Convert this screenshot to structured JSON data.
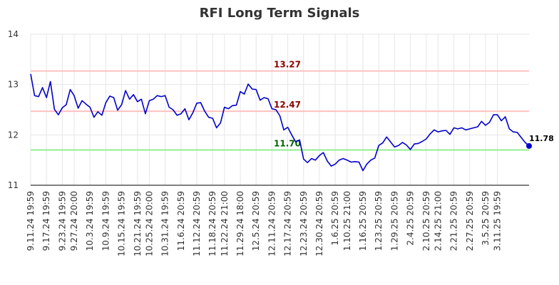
{
  "chart_data": {
    "type": "line",
    "title": "RFI Long Term Signals",
    "xlabel": "",
    "ylabel": "",
    "ylim": [
      11,
      14
    ],
    "y_ticks": [
      "11",
      "12",
      "13",
      "14"
    ],
    "x_tick_labels": [
      "9.11.24 19:59",
      "9.17.24 19:59",
      "9.23.24 19:59",
      "9.27.24 20:00",
      "10.3.24 19:59",
      "10.9.24 19:59",
      "10.15.24 19:59",
      "10.21.24 19:59",
      "10.25.24 20:00",
      "10.31.24 19:59",
      "11.6.24 20:59",
      "11.12.24 20:59",
      "11.18.24 20:59",
      "11.22.24 21:00",
      "11.29.24 18:00",
      "12.5.24 20:59",
      "12.11.24 20:59",
      "12.17.24 20:59",
      "12.23.24 20:59",
      "12.30.24 20:59",
      "1.6.25 20:59",
      "1.10.25 21:00",
      "1.16.25 20:59",
      "1.23.25 20:59",
      "1.29.25 20:59",
      "2.4.25 20:59",
      "2.10.25 20:59",
      "2.14.25 21:00",
      "2.21.25 20:59",
      "2.27.25 20:59",
      "3.5.25 20:59",
      "3.11.25 19:59"
    ],
    "x_tick_index": [
      0,
      4,
      8,
      11,
      15,
      19,
      23,
      27,
      30,
      34,
      38,
      42,
      46,
      49,
      53,
      57,
      61,
      65,
      69,
      73,
      77,
      80,
      84,
      88,
      92,
      96,
      100,
      103,
      107,
      111,
      115,
      118
    ],
    "series": [
      {
        "color": "#0000cc",
        "values": [
          13.21,
          12.78,
          12.76,
          12.94,
          12.74,
          13.06,
          12.51,
          12.4,
          12.54,
          12.6,
          12.9,
          12.78,
          12.53,
          12.68,
          12.61,
          12.55,
          12.35,
          12.46,
          12.39,
          12.64,
          12.77,
          12.74,
          12.49,
          12.6,
          12.88,
          12.71,
          12.8,
          12.66,
          12.71,
          12.42,
          12.68,
          12.71,
          12.78,
          12.76,
          12.78,
          12.55,
          12.5,
          12.39,
          12.42,
          12.52,
          12.3,
          12.44,
          12.63,
          12.64,
          12.47,
          12.35,
          12.33,
          12.14,
          12.24,
          12.55,
          12.52,
          12.58,
          12.59,
          12.86,
          12.81,
          13.01,
          12.91,
          12.9,
          12.69,
          12.74,
          12.72,
          12.52,
          12.5,
          12.38,
          12.1,
          12.15,
          12.0,
          11.86,
          11.9,
          11.52,
          11.45,
          11.53,
          11.5,
          11.59,
          11.65,
          11.48,
          11.38,
          11.42,
          11.5,
          11.53,
          11.5,
          11.46,
          11.47,
          11.46,
          11.29,
          11.42,
          11.5,
          11.54,
          11.79,
          11.84,
          11.96,
          11.86,
          11.76,
          11.79,
          11.85,
          11.8,
          11.71,
          11.82,
          11.83,
          11.87,
          11.92,
          12.02,
          12.1,
          12.06,
          12.08,
          12.09,
          12.01,
          12.14,
          12.12,
          12.14,
          12.1,
          12.12,
          12.14,
          12.16,
          12.27,
          12.19,
          12.25,
          12.4,
          12.4,
          12.28,
          12.36,
          12.12,
          12.06,
          12.05,
          11.95,
          11.85,
          11.78
        ]
      }
    ],
    "reference_lines": [
      {
        "value": 13.27,
        "label": "13.27",
        "line_color": "#ffc0c0",
        "label_color": "#8b0000"
      },
      {
        "value": 12.47,
        "label": "12.47",
        "line_color": "#ffc0c0",
        "label_color": "#8b0000"
      },
      {
        "value": 11.7,
        "label": "11.70",
        "line_color": "#90ee90",
        "label_color": "#006400"
      }
    ],
    "last_point_label": "11.78",
    "grid": true
  }
}
